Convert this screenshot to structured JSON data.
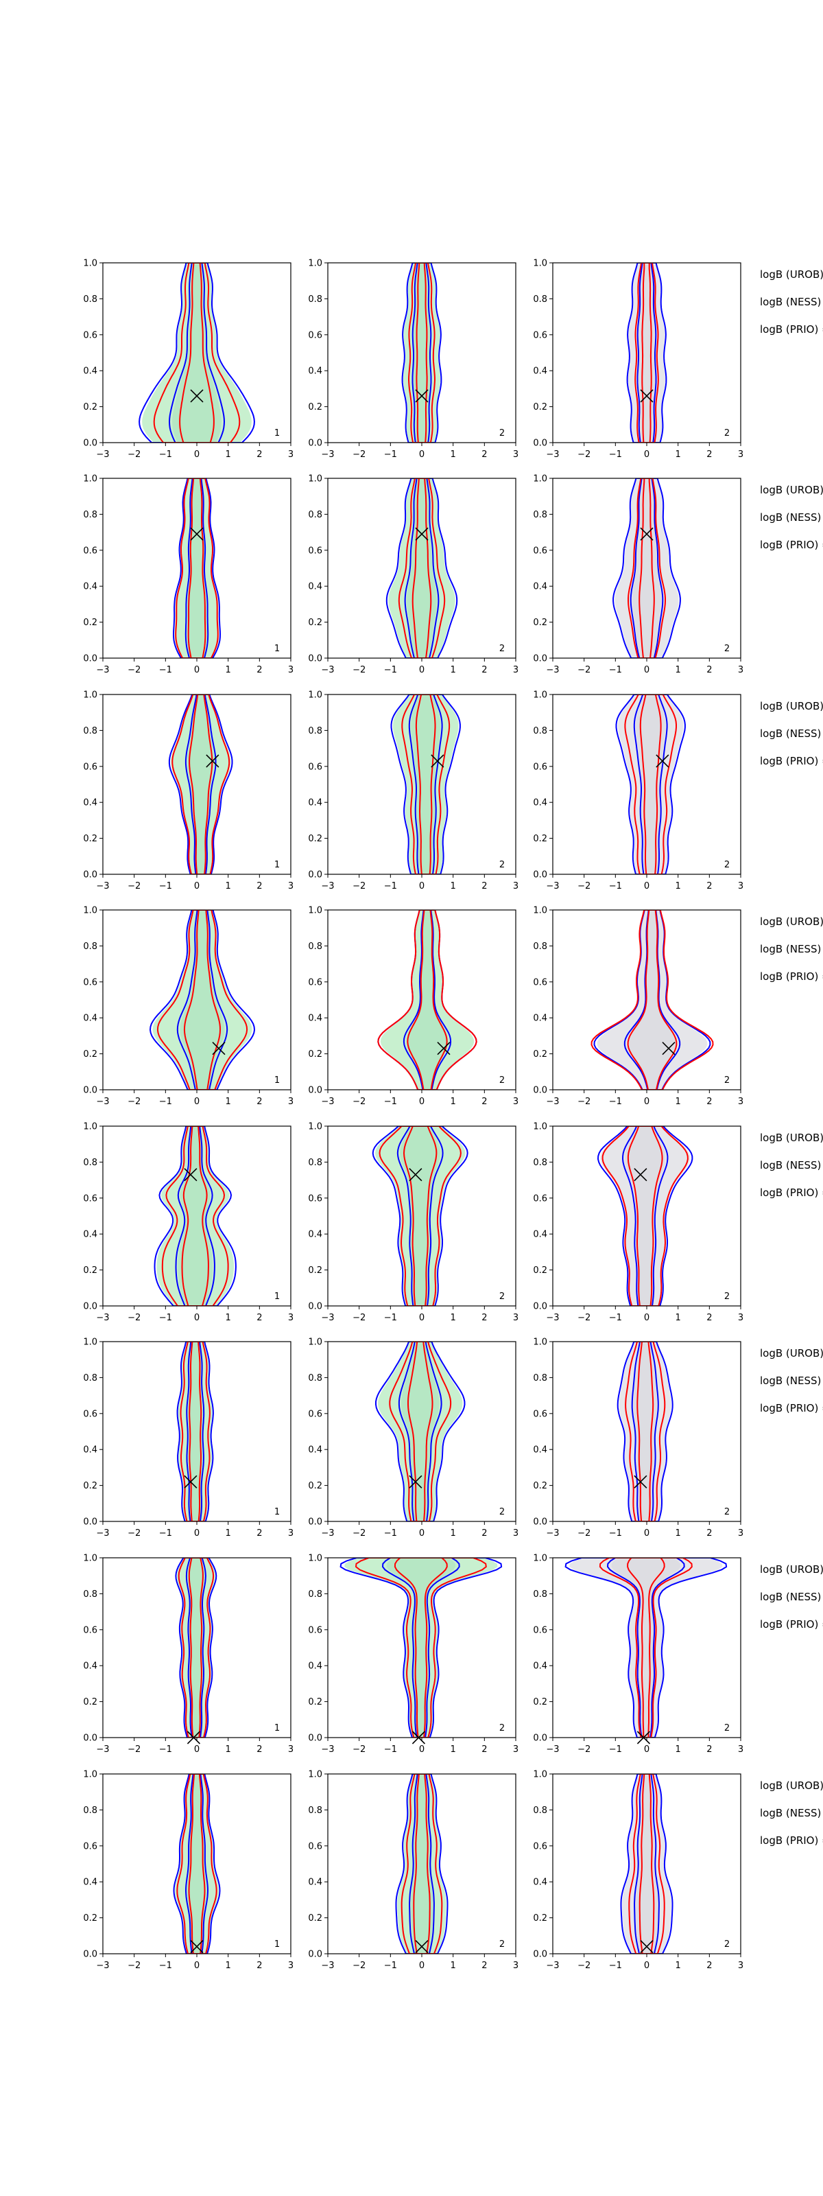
{
  "figure": {
    "background": "#ffffff",
    "colors": {
      "blue_contour": "#0000ff",
      "red_contour": "#ff0000",
      "green_fill": "#c8f0cf",
      "gray_fill": "#e6e6ea",
      "marker": "#000000",
      "axis": "#000000"
    },
    "side_labels": [
      "logB (UROB) =",
      "logB (NESS) =",
      "logB (PRIO) ="
    ]
  },
  "chart_data": {
    "type": "contour-grid",
    "rows": 8,
    "cols": 3,
    "x_ticks": [
      -3,
      -2,
      -1,
      0,
      1,
      2,
      3
    ],
    "y_ticks": [
      0.0,
      0.2,
      0.4,
      0.6,
      0.8,
      1.0
    ],
    "x_tick_labels": [
      "−3",
      "−2",
      "−1",
      "0",
      "1",
      "2",
      "3"
    ],
    "y_tick_labels": [
      "0.0",
      "0.2",
      "0.4",
      "0.6",
      "0.8",
      "1.0"
    ],
    "xlim": [
      -3,
      3
    ],
    "ylim": [
      0,
      1
    ],
    "grid": false,
    "column_fill": [
      "green",
      "green",
      "gray"
    ],
    "panel_labels": [
      "1",
      "2",
      "2"
    ],
    "markers": [
      {
        "x": 0.0,
        "y": 0.26
      },
      {
        "x": 0.0,
        "y": 0.69
      },
      {
        "x": 0.5,
        "y": 0.63
      },
      {
        "x": 0.7,
        "y": 0.23
      },
      {
        "x": -0.2,
        "y": 0.73
      },
      {
        "x": -0.2,
        "y": 0.22
      },
      {
        "x": -0.1,
        "y": 0.0
      },
      {
        "x": 0.0,
        "y": 0.04
      }
    ],
    "row_shapes": [
      [
        {
          "bulges": [
            {
              "y": 0.12,
              "amp": 1.3,
              "sigma": 0.17
            }
          ],
          "base": [
            0.4,
            0.85,
            0.4
          ],
          "red_scale": 0.78
        },
        {
          "bulges": [],
          "base": [
            0.45,
            0.9,
            0.35
          ],
          "red_scale": 0.7
        },
        {
          "bulges": [],
          "base": [
            0.45,
            0.9,
            0.35
          ],
          "red_scale": 0.62
        }
      ],
      [
        {
          "bulges": [
            {
              "y": 0.15,
              "amp": 0.35,
              "sigma": 0.15
            }
          ],
          "base": [
            0.3,
            0.75,
            0.35
          ],
          "red_scale": 0.95
        },
        {
          "bulges": [
            {
              "y": 0.28,
              "amp": 0.45,
              "sigma": 0.15
            }
          ],
          "base": [
            0.45,
            1.0,
            0.4
          ],
          "red_scale": 0.68
        },
        {
          "bulges": [
            {
              "y": 0.28,
              "amp": 0.4,
              "sigma": 0.15
            }
          ],
          "base": [
            0.45,
            1.0,
            0.4
          ],
          "red_scale": 0.58
        }
      ],
      [
        {
          "bulges": [
            {
              "y": 0.65,
              "amp": 0.45,
              "sigma": 0.15
            }
          ],
          "base": [
            0.35,
            0.8,
            0.3
          ],
          "red_scale": 0.95
        },
        {
          "bulges": [
            {
              "y": 0.82,
              "amp": 0.55,
              "sigma": 0.12
            }
          ],
          "base": [
            0.5,
            1.0,
            0.4
          ],
          "red_scale": 0.72
        },
        {
          "bulges": [
            {
              "y": 0.82,
              "amp": 0.55,
              "sigma": 0.12
            }
          ],
          "base": [
            0.5,
            1.0,
            0.4
          ],
          "red_scale": 0.78
        }
      ],
      [
        {
          "bulges": [
            {
              "y": 0.33,
              "amp": 1.0,
              "sigma": 0.13
            }
          ],
          "base": [
            0.45,
            0.85,
            0.4
          ],
          "red_scale": 0.9
        },
        {
          "bulges": [
            {
              "y": 0.26,
              "amp": 1.1,
              "sigma": 0.09
            }
          ],
          "base": [
            0.3,
            0.7,
            0.3
          ],
          "red_scale": 1.05
        },
        {
          "bulges": [
            {
              "y": 0.25,
              "amp": 1.4,
              "sigma": 0.09
            }
          ],
          "base": [
            0.3,
            0.65,
            0.3
          ],
          "red_scale": 1.1
        }
      ],
      [
        {
          "bulges": [
            {
              "y": 0.2,
              "amp": 0.85,
              "sigma": 0.15
            },
            {
              "y": 0.62,
              "amp": 0.55,
              "sigma": 0.07
            }
          ],
          "base": [
            0.35,
            0.75,
            0.35
          ],
          "red_scale": 0.85
        },
        {
          "bulges": [
            {
              "y": 0.85,
              "amp": 0.9,
              "sigma": 0.1
            }
          ],
          "base": [
            0.5,
            1.0,
            0.45
          ],
          "red_scale": 0.9
        },
        {
          "bulges": [
            {
              "y": 0.82,
              "amp": 0.9,
              "sigma": 0.1
            }
          ],
          "base": [
            0.5,
            1.0,
            0.45
          ],
          "red_scale": 0.95
        }
      ],
      [
        {
          "bulges": [],
          "base": [
            0.35,
            0.8,
            0.35
          ],
          "red_scale": 0.85
        },
        {
          "bulges": [
            {
              "y": 0.68,
              "amp": 0.75,
              "sigma": 0.12
            }
          ],
          "base": [
            0.45,
            1.0,
            0.4
          ],
          "red_scale": 0.72
        },
        {
          "bulges": [
            {
              "y": 0.72,
              "amp": 0.25,
              "sigma": 0.12
            }
          ],
          "base": [
            0.45,
            1.0,
            0.4
          ],
          "red_scale": 0.75
        }
      ],
      [
        {
          "bulges": [
            {
              "y": 0.92,
              "amp": 0.25,
              "sigma": 0.08
            }
          ],
          "base": [
            0.3,
            0.75,
            0.3
          ],
          "red_scale": 0.9
        },
        {
          "bulges": [
            {
              "y": 0.96,
              "amp": 2.2,
              "sigma": 0.06
            }
          ],
          "base": [
            0.3,
            0.9,
            0.25
          ],
          "red_scale": 0.85
        },
        {
          "bulges": [
            {
              "y": 0.96,
              "amp": 2.2,
              "sigma": 0.06
            }
          ],
          "base": [
            0.3,
            0.9,
            0.25
          ],
          "red_scale": 0.6
        }
      ],
      [
        {
          "bulges": [
            {
              "y": 0.35,
              "amp": 0.2,
              "sigma": 0.12
            }
          ],
          "base": [
            0.35,
            0.75,
            0.3
          ],
          "red_scale": 0.9
        },
        {
          "bulges": [
            {
              "y": 0.2,
              "amp": 0.3,
              "sigma": 0.12
            }
          ],
          "base": [
            0.45,
            0.9,
            0.35
          ],
          "red_scale": 0.82
        },
        {
          "bulges": [
            {
              "y": 0.2,
              "amp": 0.3,
              "sigma": 0.12
            }
          ],
          "base": [
            0.45,
            0.9,
            0.35
          ],
          "red_scale": 0.72
        }
      ]
    ]
  }
}
